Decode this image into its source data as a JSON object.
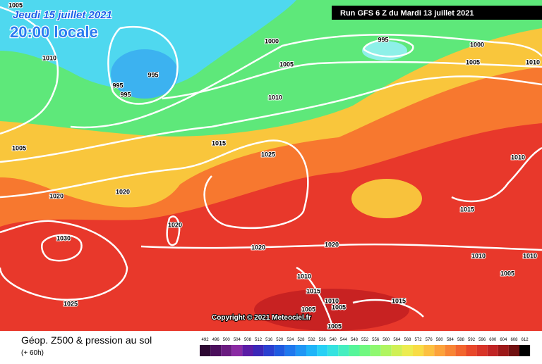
{
  "header": {
    "date": "Jeudi 15 juillet 2021",
    "time": "20:00 locale",
    "run": "Run GFS 6 Z du Mardi 13 juillet 2021"
  },
  "isobar_labels": [
    "1005",
    "1010",
    "995",
    "995",
    "995",
    "1000",
    "995",
    "1000",
    "1005",
    "1005",
    "1010",
    "1010",
    "1015",
    "1005",
    "1025",
    "1010",
    "1020",
    "1020",
    "1015",
    "1030",
    "1020",
    "1020",
    "1020",
    "1010",
    "1010",
    "1005",
    "1010",
    "1015",
    "1010",
    "1005",
    "1005",
    "1015",
    "1005",
    "1025"
  ],
  "copyright": "Copyright © 2021 Meteociel.fr",
  "footer": {
    "title": "Géop. Z500 & pression au sol",
    "lead": "(+ 60h)"
  },
  "scale": {
    "labels": [
      492,
      496,
      500,
      504,
      508,
      512,
      516,
      520,
      524,
      528,
      532,
      536,
      540,
      544,
      548,
      552,
      556,
      560,
      564,
      568,
      572,
      576,
      580,
      584,
      588,
      592,
      596,
      600,
      604,
      608,
      612
    ],
    "colors": [
      "#2d0833",
      "#4b0f5c",
      "#6a1b80",
      "#8a2aa3",
      "#5b1ca6",
      "#3b27b8",
      "#2a3fd0",
      "#1f5ae0",
      "#1f78ee",
      "#1f96f5",
      "#1fb4f8",
      "#28d0f5",
      "#35e2e0",
      "#45eec0",
      "#55f59a",
      "#70f880",
      "#8ff870",
      "#b0f560",
      "#d0f055",
      "#ecec50",
      "#f8dc45",
      "#fcc040",
      "#fca23a",
      "#f88434",
      "#f2652e",
      "#e8482a",
      "#d83428",
      "#c02424",
      "#9c1818",
      "#701010",
      "#000000"
    ]
  }
}
